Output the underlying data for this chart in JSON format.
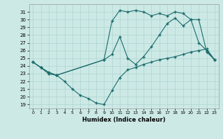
{
  "xlabel": "Humidex (Indice chaleur)",
  "bg_color": "#cce9e6",
  "grid_color": "#aed4d0",
  "line_color": "#1a6b6b",
  "xlim": [
    -0.5,
    23.5
  ],
  "ylim": [
    18.5,
    32
  ],
  "xticks": [
    0,
    1,
    2,
    3,
    4,
    5,
    6,
    7,
    8,
    9,
    10,
    11,
    12,
    13,
    14,
    15,
    16,
    17,
    18,
    19,
    20,
    21,
    22,
    23
  ],
  "yticks": [
    19,
    20,
    21,
    22,
    23,
    24,
    25,
    26,
    27,
    28,
    29,
    30,
    31
  ],
  "line1_x": [
    0,
    1,
    2,
    3,
    9,
    10,
    11,
    12,
    13,
    14,
    15,
    16,
    17,
    18,
    19,
    20,
    21,
    22,
    23
  ],
  "line1_y": [
    24.5,
    23.8,
    23.0,
    22.8,
    24.8,
    29.8,
    31.2,
    31.0,
    31.2,
    31.0,
    30.5,
    30.8,
    30.5,
    31.0,
    30.8,
    30.0,
    30.0,
    25.8,
    24.8
  ],
  "line2_x": [
    0,
    1,
    2,
    3,
    9,
    10,
    11,
    12,
    13,
    14,
    15,
    16,
    17,
    18,
    19,
    20,
    21,
    22,
    23
  ],
  "line2_y": [
    24.5,
    23.8,
    23.0,
    22.8,
    24.8,
    25.5,
    27.8,
    25.0,
    24.2,
    25.2,
    26.5,
    28.0,
    29.5,
    30.2,
    29.2,
    30.0,
    27.0,
    26.0,
    24.8
  ],
  "line3_x": [
    0,
    1,
    2,
    3,
    4,
    5,
    6,
    7,
    8,
    9,
    10,
    11,
    12,
    13,
    14,
    15,
    16,
    17,
    18,
    19,
    20,
    21,
    22,
    23
  ],
  "line3_y": [
    24.5,
    23.8,
    23.2,
    22.8,
    22.0,
    21.0,
    20.2,
    19.8,
    19.2,
    19.0,
    20.8,
    22.5,
    23.5,
    23.8,
    24.2,
    24.5,
    24.8,
    25.0,
    25.2,
    25.5,
    25.8,
    26.0,
    26.2,
    24.8
  ]
}
